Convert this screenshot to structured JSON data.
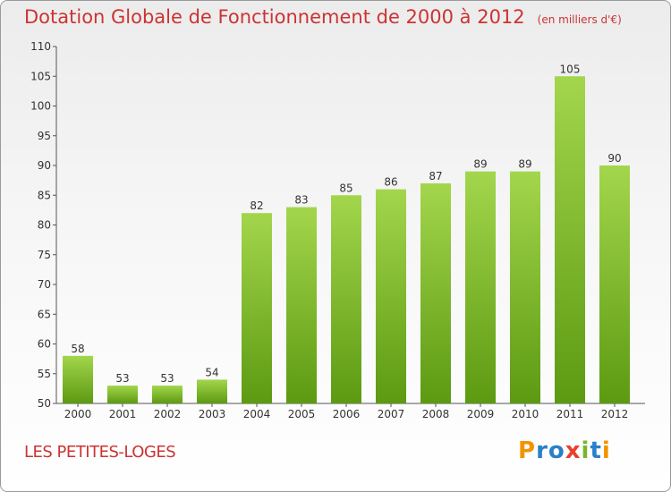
{
  "chart_data": {
    "type": "bar",
    "title": "Dotation Globale de Fonctionnement de 2000 à 2012",
    "subtitle": "(en milliers d'€)",
    "categories": [
      "2000",
      "2001",
      "2002",
      "2003",
      "2004",
      "2005",
      "2006",
      "2007",
      "2008",
      "2009",
      "2010",
      "2011",
      "2012"
    ],
    "values": [
      58,
      53,
      53,
      54,
      82,
      83,
      85,
      86,
      87,
      89,
      89,
      105,
      90
    ],
    "ylim": [
      50,
      110
    ],
    "yticks": [
      50,
      55,
      60,
      65,
      70,
      75,
      80,
      85,
      90,
      95,
      100,
      105,
      110
    ],
    "xlabel": "",
    "ylabel": "",
    "grid": false,
    "bar_color": "#7fbf2f",
    "label_color": "#cc3333"
  },
  "place_name": "LES PETITES-LOGES",
  "logo": {
    "text": "Proxiti",
    "letter_colors": [
      "#f29400",
      "#2a7fc9",
      "#2a7fc9",
      "#e8412b",
      "#7ab62d",
      "#2a7fc9",
      "#f29400"
    ]
  }
}
